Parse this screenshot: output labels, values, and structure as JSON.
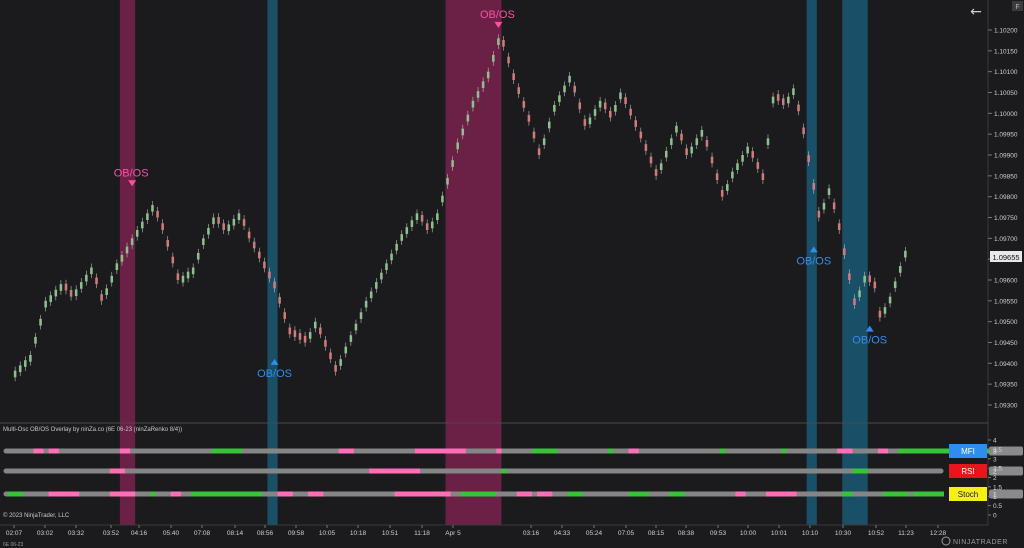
{
  "window": {
    "back_icon": "arrow-left-icon",
    "f_badge": "F"
  },
  "chart_data": [
    {
      "type": "renko-price",
      "instrument": "6E 06-23",
      "last_price": "1.09655",
      "y_ticks": [
        "1.10200",
        "1.10150",
        "1.10100",
        "1.10050",
        "1.10000",
        "1.09950",
        "1.09900",
        "1.09850",
        "1.09800",
        "1.09750",
        "1.09700",
        "1.09650",
        "1.09600",
        "1.09550",
        "1.09500",
        "1.09450",
        "1.09400",
        "1.09350",
        "1.09300"
      ],
      "ylim": [
        1.0928,
        1.1026
      ],
      "price_path": [
        [
          0,
          1.0937
        ],
        [
          4,
          1.0942
        ],
        [
          7,
          1.0955
        ],
        [
          10,
          1.0959
        ],
        [
          12,
          1.0956
        ],
        [
          16,
          1.0963
        ],
        [
          18,
          1.0955
        ],
        [
          21,
          1.0964
        ],
        [
          26,
          1.0974
        ],
        [
          28,
          1.0978
        ],
        [
          30,
          1.0972
        ],
        [
          33,
          1.096
        ],
        [
          36,
          1.0963
        ],
        [
          38,
          1.097
        ],
        [
          40,
          1.0975
        ],
        [
          42,
          1.0972
        ],
        [
          45,
          1.0976
        ],
        [
          47,
          1.097
        ],
        [
          52,
          1.0958
        ],
        [
          55,
          1.0947
        ],
        [
          58,
          1.0945
        ],
        [
          60,
          1.095
        ],
        [
          64,
          1.0938
        ],
        [
          66,
          1.0944
        ],
        [
          70,
          1.0955
        ],
        [
          74,
          1.0964
        ],
        [
          77,
          1.0971
        ],
        [
          80,
          1.0976
        ],
        [
          82,
          1.0972
        ],
        [
          84,
          1.0976
        ],
        [
          88,
          1.0993
        ],
        [
          91,
          1.1003
        ],
        [
          94,
          1.101
        ],
        [
          96,
          1.1018
        ],
        [
          97,
          1.1016
        ],
        [
          99,
          1.1008
        ],
        [
          102,
          1.0998
        ],
        [
          104,
          1.099
        ],
        [
          107,
          1.1002
        ],
        [
          110,
          1.1009
        ],
        [
          113,
          1.0997
        ],
        [
          116,
          1.1003
        ],
        [
          118,
          1.0999
        ],
        [
          120,
          1.1005
        ],
        [
          124,
          1.0994
        ],
        [
          127,
          1.0985
        ],
        [
          131,
          1.0997
        ],
        [
          133,
          1.099
        ],
        [
          136,
          1.0996
        ],
        [
          140,
          1.098
        ],
        [
          142,
          1.0986
        ],
        [
          145,
          1.0992
        ],
        [
          148,
          1.0984
        ],
        [
          150,
          1.1004
        ],
        [
          152,
          1.1002
        ],
        [
          154,
          1.1006
        ],
        [
          156,
          1.0995
        ],
        [
          159,
          1.0975
        ],
        [
          161,
          1.0982
        ],
        [
          163,
          1.0972
        ],
        [
          166,
          1.0954
        ],
        [
          168,
          1.0961
        ],
        [
          170,
          1.0958
        ],
        [
          171,
          1.0951
        ],
        [
          173,
          1.0956
        ],
        [
          176,
          1.0967
        ]
      ],
      "signals": [
        {
          "label": "OB/OS",
          "type": "overbought",
          "pos": 24,
          "price": 1.09825
        },
        {
          "label": "OB/OS",
          "type": "oversold",
          "pos": 52,
          "price": 1.09425
        },
        {
          "label": "OB/OS",
          "type": "overbought",
          "pos": 96,
          "price": 1.10205
        },
        {
          "label": "OB/OS",
          "type": "oversold",
          "pos": 158,
          "price": 1.09695
        },
        {
          "label": "OB/OS",
          "type": "oversold",
          "pos": 169,
          "price": 1.09505
        }
      ],
      "shaded_zones": [
        {
          "from": 22,
          "to": 24,
          "type": "overbought"
        },
        {
          "from": 51,
          "to": 52,
          "type": "oversold"
        },
        {
          "from": 86,
          "to": 96,
          "type": "overbought"
        },
        {
          "from": 157,
          "to": 158,
          "type": "oversold"
        },
        {
          "from": 164,
          "to": 168,
          "type": "oversold"
        }
      ],
      "x_ticks": [
        "02:07",
        "03:02",
        "03:32",
        "03:52",
        "04:16",
        "05:40",
        "07:08",
        "08:14",
        "08:56",
        "09:58",
        "10:05",
        "10:18",
        "10:51",
        "11:18",
        "Apr 5",
        "03:16",
        "04:33",
        "05:24",
        "07:05",
        "08:15",
        "08:38",
        "09:53",
        "10:00",
        "10:01",
        "10:10",
        "10:30",
        "10:52",
        "11:23",
        "12:28"
      ]
    },
    {
      "type": "oscillator-overlay",
      "title": "Multi-Osc OB/OS Overlay by ninZa.co (6E 06-23 (ninZaRenko 8/4))",
      "y_ticks": [
        "4",
        "3.5",
        "3",
        "2.5",
        "2",
        "1.5",
        "1",
        "0.5",
        "0"
      ],
      "right_values": [
        "3",
        "2",
        "1"
      ],
      "series": [
        {
          "name": "MFI",
          "badge_color": "#2f8df0",
          "badge_text_color": "#ffffff",
          "segments": [
            [
              5,
              7,
              "pink"
            ],
            [
              8,
              10,
              "pink"
            ],
            [
              22,
              24,
              "pink"
            ],
            [
              40,
              46,
              "green"
            ],
            [
              65,
              68,
              "pink"
            ],
            [
              80,
              86,
              "pink"
            ],
            [
              86,
              90,
              "pink"
            ],
            [
              96,
              97,
              "pink"
            ],
            [
              103,
              108,
              "green"
            ],
            [
              118,
              119,
              "green"
            ],
            [
              122,
              124,
              "pink"
            ],
            [
              140,
              141,
              "green"
            ],
            [
              152,
              153,
              "green"
            ],
            [
              163,
              166,
              "pink"
            ],
            [
              171,
              173,
              "pink"
            ],
            [
              175,
              184,
              "green"
            ],
            [
              184,
              193,
              "green"
            ]
          ]
        },
        {
          "name": "RSI",
          "badge_color": "#e8151b",
          "badge_text_color": "#ffffff",
          "segments": [
            [
              20,
              23,
              "pink"
            ],
            [
              71,
              81,
              "pink"
            ],
            [
              97,
              98,
              "green"
            ],
            [
              166,
              169,
              "green"
            ]
          ]
        },
        {
          "name": "Stoch",
          "badge_color": "#f5ef15",
          "badge_text_color": "#1b1b1b",
          "segments": [
            [
              0,
              3,
              "green"
            ],
            [
              8,
              14,
              "pink"
            ],
            [
              20,
              25,
              "pink"
            ],
            [
              28,
              29,
              "green"
            ],
            [
              32,
              34,
              "pink"
            ],
            [
              36,
              40,
              "green"
            ],
            [
              40,
              50,
              "green"
            ],
            [
              53,
              56,
              "pink"
            ],
            [
              59,
              62,
              "pink"
            ],
            [
              76,
              85,
              "pink"
            ],
            [
              85,
              87,
              "pink"
            ],
            [
              89,
              96,
              "green"
            ],
            [
              100,
              103,
              "pink"
            ],
            [
              104,
              107,
              "pink"
            ],
            [
              110,
              113,
              "green"
            ],
            [
              122,
              126,
              "green"
            ],
            [
              130,
              133,
              "green"
            ],
            [
              143,
              145,
              "pink"
            ],
            [
              149,
              155,
              "pink"
            ],
            [
              164,
              166,
              "green"
            ],
            [
              172,
              177,
              "green"
            ],
            [
              178,
              184,
              "green"
            ]
          ]
        }
      ]
    }
  ],
  "footer": {
    "copyright": "© 2023 NinjaTrader, LLC",
    "instrument": "6E 06-23",
    "brand": "NINJATRADER"
  }
}
